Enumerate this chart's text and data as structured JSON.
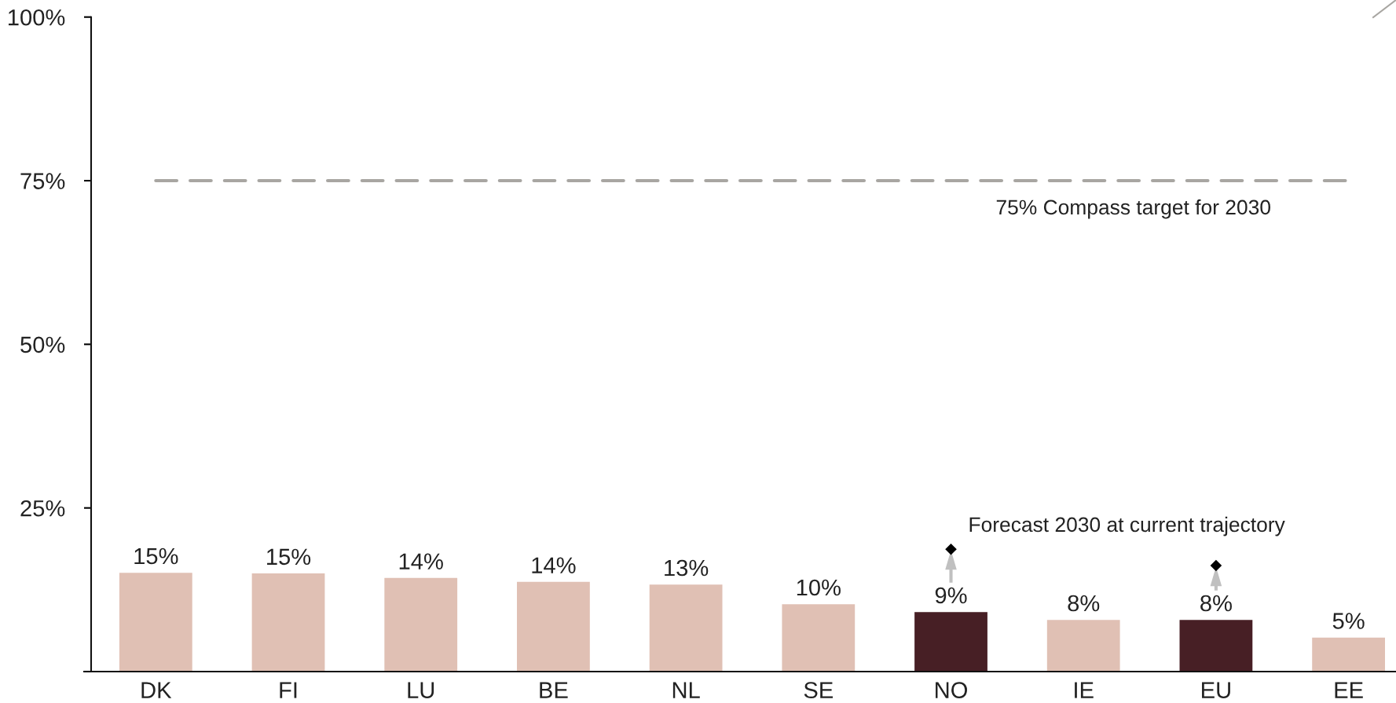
{
  "chart_data": {
    "type": "bar",
    "categories": [
      "DK",
      "FI",
      "LU",
      "BE",
      "NL",
      "SE",
      "NO",
      "IE",
      "EU",
      "EE"
    ],
    "series": [
      {
        "values": [
          15.1,
          15.0,
          14.3,
          13.7,
          13.3,
          10.3,
          9.1,
          7.9,
          7.9,
          5.2
        ],
        "colors": [
          "#e0c0b4",
          "#e0c0b4",
          "#e0c0b4",
          "#e0c0b4",
          "#e0c0b4",
          "#e0c0b4",
          "#471f25",
          "#e0c0b4",
          "#471f25",
          "#e0c0b4"
        ],
        "value_labels": [
          "15%",
          "15%",
          "14%",
          "14%",
          "13%",
          "10%",
          "9%",
          "8%",
          "8%",
          "5%"
        ]
      },
      {
        "type": "scatter",
        "name": "Forecast 2030 at current trajectory",
        "color": "#000000",
        "marker": "diamond",
        "values": [
          null,
          null,
          null,
          null,
          null,
          null,
          18.7,
          null,
          16.2,
          null
        ]
      }
    ],
    "ylim": [
      0,
      100
    ],
    "yticks": [
      {
        "value": 0,
        "label": null
      },
      {
        "value": 25,
        "label": "25%"
      },
      {
        "value": 50,
        "label": "50%"
      },
      {
        "value": 75,
        "label": "75%"
      },
      {
        "value": 100,
        "label": "100%"
      }
    ],
    "ref_lines": [
      {
        "axis": "y",
        "value": 75,
        "label": "75% Compass target for 2030",
        "color": "#a8a6a2",
        "line_style": "dashed"
      }
    ],
    "grid": false,
    "legend": false
  }
}
